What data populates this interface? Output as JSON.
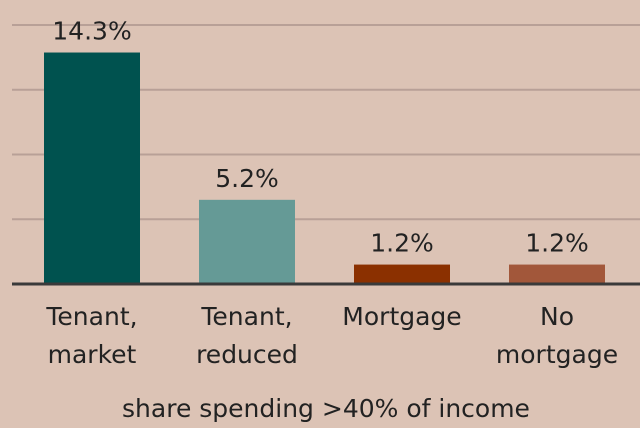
{
  "chart_data": {
    "type": "bar",
    "categories": [
      "Tenant, market",
      "Tenant, reduced",
      "Mortgage",
      "No mortgage"
    ],
    "values": [
      14.3,
      5.2,
      1.2,
      1.2
    ],
    "value_labels": [
      "14.3%",
      "5.2%",
      "1.2%",
      "1.2%"
    ],
    "colors": [
      "#00524f",
      "#659a96",
      "#8b3000",
      "#a2573a"
    ],
    "x_label": "share spending >40% of income",
    "ylim": [
      0,
      16
    ],
    "yticks": [
      0,
      4,
      8,
      12,
      16
    ],
    "grid": true
  }
}
